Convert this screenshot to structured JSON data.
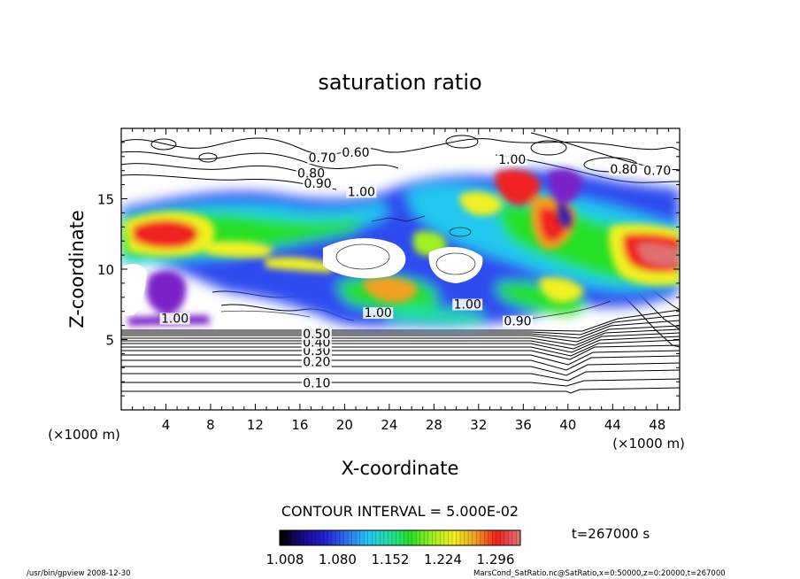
{
  "chart_data": {
    "type": "heatmap",
    "title": "saturation ratio",
    "xlabel": "X-coordinate",
    "ylabel": "Z-coordinate",
    "xunit": "(×1000 m)",
    "yunit": "(×1000 m)",
    "xlim": [
      0,
      50
    ],
    "ylim": [
      0,
      20
    ],
    "x_ticks": [
      "4",
      "8",
      "12",
      "16",
      "20",
      "24",
      "28",
      "32",
      "36",
      "40",
      "44",
      "48"
    ],
    "y_ticks": [
      "5",
      "10",
      "15"
    ],
    "contour_interval": "CONTOUR INTERVAL = 5.000E-02",
    "contour_labels": [
      {
        "text": "0.10",
        "x": 17.5,
        "z": 1.6
      },
      {
        "text": "0.20",
        "x": 17.5,
        "z": 3.1
      },
      {
        "text": "0.30",
        "x": 17.5,
        "z": 3.9
      },
      {
        "text": "0.40",
        "x": 17.5,
        "z": 4.5
      },
      {
        "text": "0.50",
        "x": 17.5,
        "z": 5.1
      },
      {
        "text": "0.60",
        "x": 21.0,
        "z": 18.0
      },
      {
        "text": "0.70",
        "x": 18.0,
        "z": 17.6
      },
      {
        "text": "0.80",
        "x": 17.0,
        "z": 16.5
      },
      {
        "text": "0.90",
        "x": 17.6,
        "z": 15.8
      },
      {
        "text": "1.00",
        "x": 21.5,
        "z": 15.2
      },
      {
        "text": "1.00",
        "x": 35.0,
        "z": 17.5
      },
      {
        "text": "0.80",
        "x": 45.0,
        "z": 16.8
      },
      {
        "text": "0.70",
        "x": 48.0,
        "z": 16.7
      },
      {
        "text": "1.00",
        "x": 4.8,
        "z": 6.2
      },
      {
        "text": "1.00",
        "x": 23.0,
        "z": 6.6
      },
      {
        "text": "1.00",
        "x": 31.0,
        "z": 7.2
      },
      {
        "text": "0.90",
        "x": 35.5,
        "z": 6.0
      }
    ],
    "colorbar": {
      "tick_labels": [
        "1.008",
        "1.080",
        "1.152",
        "1.224",
        "1.296"
      ],
      "colors": [
        "#000000",
        "#1a0a8c",
        "#2020d0",
        "#2f6ff0",
        "#22c8f0",
        "#20e0a0",
        "#28e028",
        "#a0f020",
        "#f0f020",
        "#f0a020",
        "#f02020",
        "#e07070"
      ]
    }
  },
  "time_label": "t=267000 s",
  "footer_left": "/usr/bin/gpview   2008-12-30",
  "footer_right": "MarsCond_SatRatio.nc@SatRatio,x=0:50000,z=0:20000,t=267000"
}
